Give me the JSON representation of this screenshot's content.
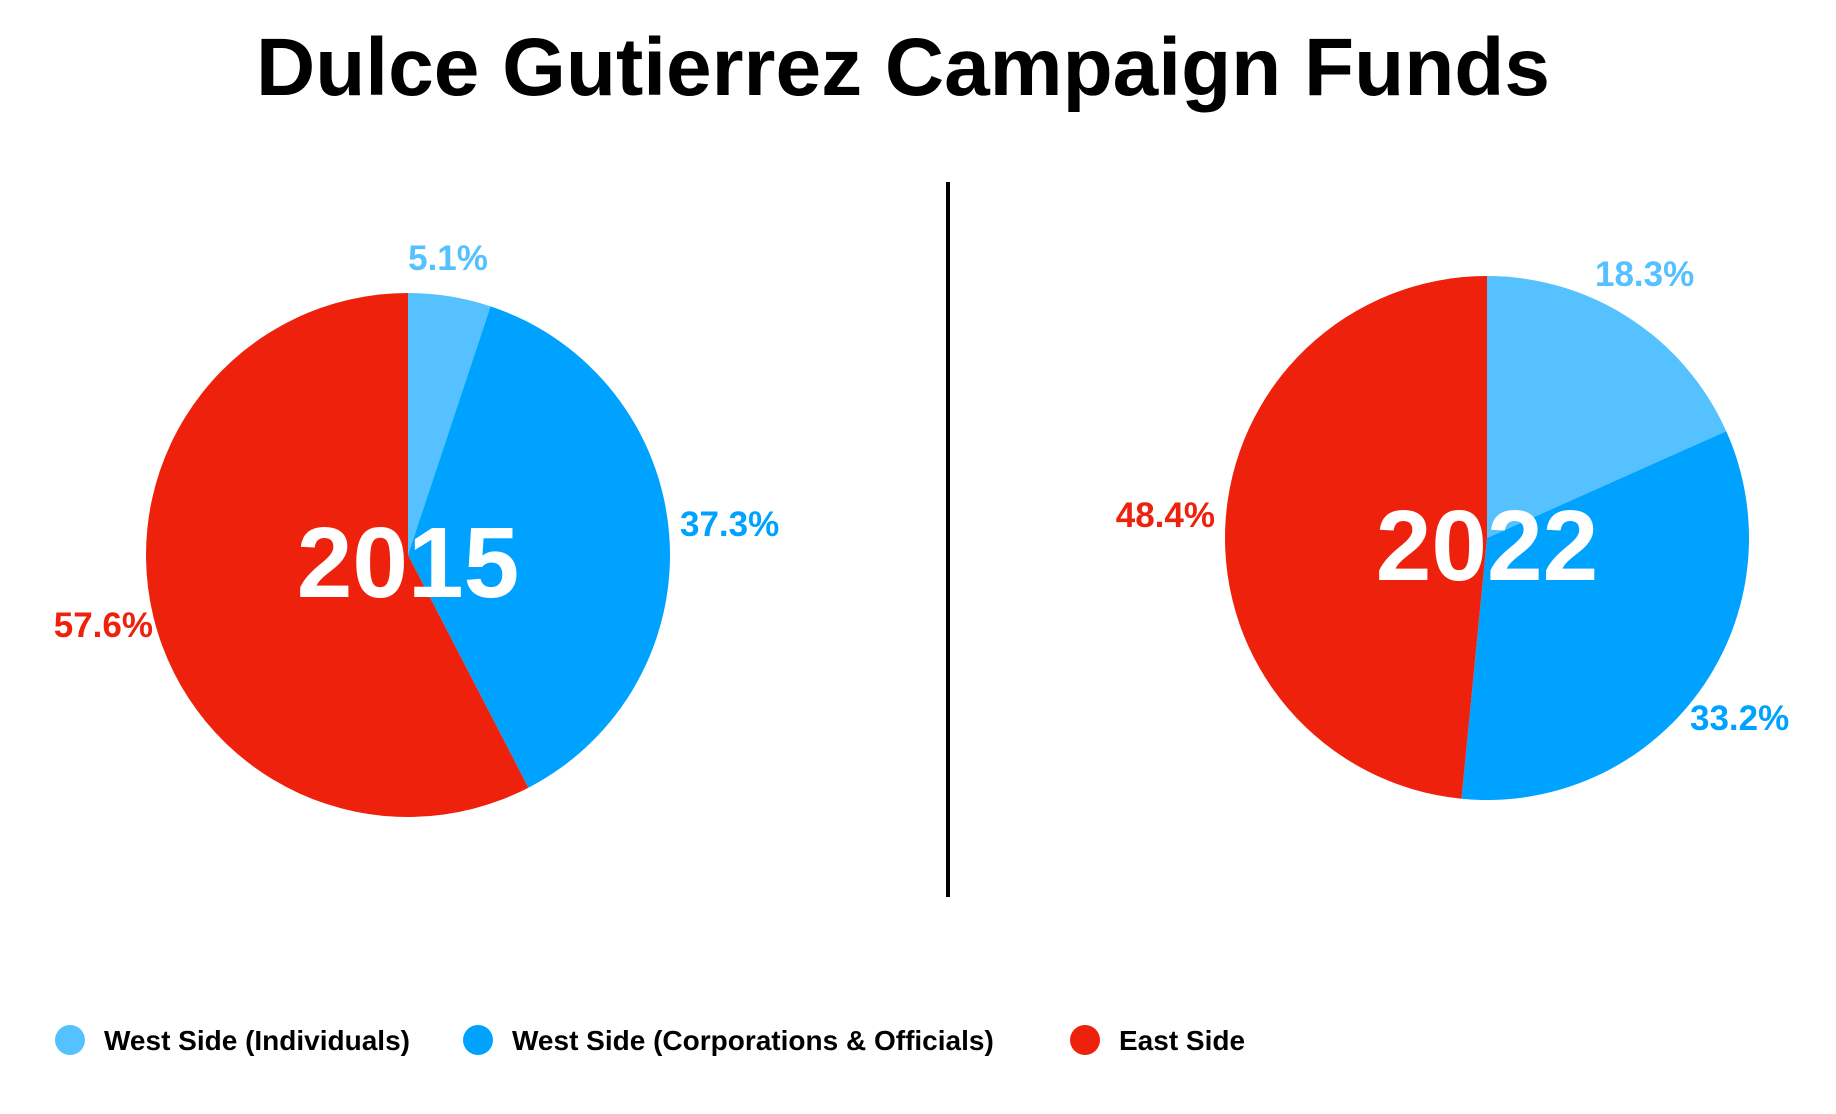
{
  "title": "Dulce Gutierrez Campaign Funds",
  "colors": {
    "west_individuals": "#55C1FF",
    "west_corporations": "#00A2FF",
    "east": "#EE220C"
  },
  "legend": [
    {
      "label": "West Side (Individuals)",
      "color_key": "west_individuals"
    },
    {
      "label": "West Side (Corporations & Officials)",
      "color_key": "west_corporations"
    },
    {
      "label": "East Side",
      "color_key": "east"
    }
  ],
  "chart_data": [
    {
      "type": "pie",
      "title": "2015",
      "categories": [
        "West Side (Individuals)",
        "West Side (Corporations & Officials)",
        "East Side"
      ],
      "values": [
        5.1,
        37.3,
        57.6
      ],
      "labels": [
        "5.1%",
        "37.3%",
        "57.6%"
      ]
    },
    {
      "type": "pie",
      "title": "2022",
      "categories": [
        "West Side (Individuals)",
        "West Side (Corporations & Officials)",
        "East Side"
      ],
      "values": [
        18.3,
        33.2,
        48.4
      ],
      "labels": [
        "18.3%",
        "33.2%",
        "48.4%"
      ]
    }
  ]
}
